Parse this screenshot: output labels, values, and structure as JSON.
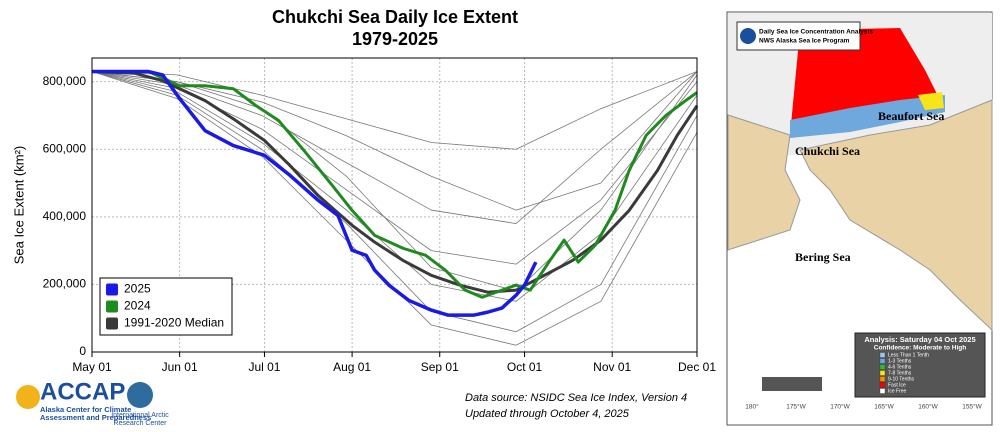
{
  "chart_data": {
    "type": "line",
    "title": "Chukchi Sea Daily Ice Extent",
    "subtitle": "1979-2025",
    "y_label": "Sea Ice Extent (km²)",
    "xlim": [
      0,
      214
    ],
    "ylim": [
      0,
      870000
    ],
    "xticks": [
      {
        "value": 0,
        "label": "May 01"
      },
      {
        "value": 31,
        "label": "Jun 01"
      },
      {
        "value": 61,
        "label": "Jul 01"
      },
      {
        "value": 92,
        "label": "Aug 01"
      },
      {
        "value": 123,
        "label": "Sep 01"
      },
      {
        "value": 153,
        "label": "Oct 01"
      },
      {
        "value": 184,
        "label": "Nov 01"
      },
      {
        "value": 214,
        "label": "Dec 01"
      }
    ],
    "yticks": [
      0,
      {
        "value": 200000,
        "label": "200,000"
      },
      {
        "value": 400000,
        "label": "400,000"
      },
      {
        "value": 600000,
        "label": "600,000"
      },
      {
        "value": 800000,
        "label": "800,000"
      }
    ],
    "grid": true,
    "legend": "lower left",
    "series": [
      {
        "color": "#777777",
        "x": [
          0,
          30,
          60,
          90,
          120,
          150,
          180,
          214
        ],
        "values": [
          830000,
          800000,
          740000,
          640000,
          520000,
          420000,
          500000,
          830000
        ]
      },
      {
        "color": "#777777",
        "x": [
          0,
          30,
          60,
          90,
          120,
          150,
          180,
          214
        ],
        "values": [
          830000,
          790000,
          700000,
          560000,
          420000,
          380000,
          600000,
          830000
        ]
      },
      {
        "color": "#777777",
        "x": [
          0,
          30,
          60,
          90,
          120,
          150,
          180,
          214
        ],
        "values": [
          830000,
          780000,
          660000,
          480000,
          300000,
          260000,
          450000,
          800000
        ]
      },
      {
        "color": "#777777",
        "x": [
          0,
          30,
          60,
          90,
          120,
          150,
          180,
          214
        ],
        "values": [
          830000,
          770000,
          620000,
          420000,
          200000,
          150000,
          350000,
          760000
        ]
      },
      {
        "color": "#777777",
        "x": [
          0,
          30,
          60,
          90,
          120,
          150,
          180,
          214
        ],
        "values": [
          830000,
          760000,
          600000,
          380000,
          120000,
          60000,
          200000,
          700000
        ]
      },
      {
        "color": "#777777",
        "x": [
          0,
          30,
          60,
          90,
          120,
          150,
          180,
          214
        ],
        "values": [
          830000,
          820000,
          760000,
          690000,
          620000,
          600000,
          720000,
          830000
        ]
      },
      {
        "color": "#777777",
        "x": [
          0,
          30,
          60,
          90,
          120,
          150,
          180,
          214
        ],
        "values": [
          830000,
          750000,
          580000,
          330000,
          80000,
          20000,
          150000,
          650000
        ]
      },
      {
        "color": "#777777",
        "x": [
          0,
          30,
          60,
          90,
          120,
          150,
          180,
          214
        ],
        "values": [
          830000,
          800000,
          720000,
          520000,
          250000,
          180000,
          420000,
          820000
        ]
      },
      {
        "name": "1991-2020 Median",
        "color": "#3a3a3a",
        "width": 3,
        "x": [
          0,
          15,
          25,
          31,
          40,
          50,
          61,
          70,
          80,
          92,
          100,
          110,
          120,
          130,
          140,
          150,
          160,
          170,
          180,
          190,
          200,
          207,
          214
        ],
        "values": [
          830000,
          825000,
          803000,
          779000,
          744000,
          690000,
          626000,
          552000,
          463000,
          375000,
          325000,
          271000,
          227000,
          198000,
          177000,
          183000,
          227000,
          271000,
          331000,
          419000,
          537000,
          641000,
          729000
        ]
      },
      {
        "name": "2024",
        "color": "#1f8a1f",
        "width": 3,
        "x": [
          0,
          20,
          31,
          40,
          50,
          58,
          66,
          75,
          85,
          92,
          100,
          110,
          118,
          125,
          132,
          138,
          145,
          150,
          155,
          162,
          167,
          172,
          178,
          185,
          190,
          196,
          203,
          210,
          214
        ],
        "values": [
          830000,
          830000,
          788000,
          788000,
          779000,
          729000,
          685000,
          596000,
          493000,
          419000,
          345000,
          307000,
          286000,
          242000,
          183000,
          162000,
          183000,
          198000,
          183000,
          271000,
          331000,
          266000,
          316000,
          419000,
          537000,
          641000,
          700000,
          744000,
          768000
        ]
      },
      {
        "name": "2025",
        "color": "#1a1ae6",
        "width": 3.5,
        "x": [
          0,
          20,
          25,
          31,
          40,
          50,
          61,
          70,
          80,
          87,
          92,
          97,
          100,
          105,
          112,
          120,
          126,
          135,
          140,
          145,
          150,
          153,
          157
        ],
        "values": [
          830000,
          830000,
          820000,
          750000,
          655000,
          611000,
          582000,
          523000,
          449000,
          404000,
          301000,
          286000,
          242000,
          198000,
          153000,
          124000,
          109000,
          109000,
          118000,
          130000,
          168000,
          198000,
          266000
        ]
      }
    ],
    "source": [
      "Data source: NSIDC Sea Ice Index, Version 4",
      "Updated through October 4, 2025"
    ]
  },
  "logos": {
    "accap": "ACCAP",
    "accap_lines": [
      "Alaska Center for Climate",
      "Assessment and Preparedness"
    ],
    "iarc": [
      "International Arctic",
      "Research Center"
    ]
  },
  "map": {
    "header": [
      "Daily Sea Ice Concentration Analysis",
      "NWS Alaska Sea Ice Program"
    ],
    "seas": [
      "Beaufort Sea",
      "Chukchi Sea",
      "Bering Sea"
    ],
    "analysis": "Analysis: Saturday 04 Oct 2025",
    "confidence": "Confidence: Moderate to High",
    "legend": [
      {
        "label": "Less Than 1 Tenth",
        "color": "#9fc5e8"
      },
      {
        "label": "1-3 Tenths",
        "color": "#6fa8dc"
      },
      {
        "label": "4-6 Tenths",
        "color": "#38b63a"
      },
      {
        "label": "7-8 Tenths",
        "color": "#f6e617"
      },
      {
        "label": "9-10 Tenths",
        "color": "#ff8c00"
      },
      {
        "label": "Fast Ice",
        "color": "#ff0000"
      },
      {
        "label": "Ice Free",
        "color": "#ffffff"
      }
    ],
    "longitudes": [
      "180°",
      "175°W",
      "170°W",
      "165°W",
      "160°W",
      "155°W"
    ]
  }
}
